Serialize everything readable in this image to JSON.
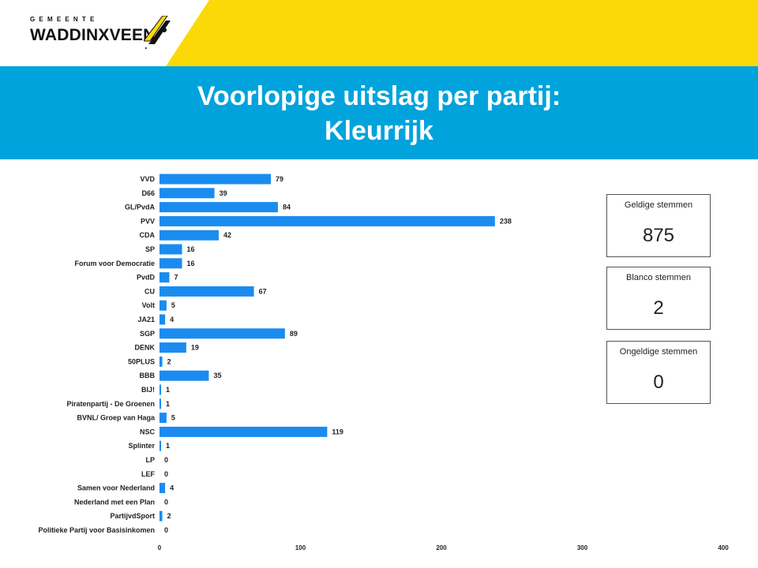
{
  "header": {
    "logo_small": "GEMEENTE",
    "logo_main": "WADDINXVEEN",
    "title_line1": "Voorlopige uitslag per partij:",
    "title_line2": "Kleurrijk"
  },
  "colors": {
    "banner": "#00a3dc",
    "accent_yellow": "#fbd907",
    "bar": "#1a8cf0"
  },
  "cards": [
    {
      "title": "Geldige stemmen",
      "value": "875"
    },
    {
      "title": "Blanco stemmen",
      "value": "2"
    },
    {
      "title": "Ongeldige stemmen",
      "value": "0"
    }
  ],
  "chart_data": {
    "type": "bar",
    "orientation": "horizontal",
    "categories": [
      "VVD",
      "D66",
      "GL/PvdA",
      "PVV",
      "CDA",
      "SP",
      "Forum voor Democratie",
      "PvdD",
      "CU",
      "Volt",
      "JA21",
      "SGP",
      "DENK",
      "50PLUS",
      "BBB",
      "BIJ!",
      "Piratenpartij - De Groenen",
      "BVNL/ Groep van Haga",
      "NSC",
      "Splinter",
      "LP",
      "LEF",
      "Samen voor Nederland",
      "Nederland met een Plan",
      "PartijvdSport",
      "Politieke Partij voor Basisinkomen"
    ],
    "values": [
      79,
      39,
      84,
      238,
      42,
      16,
      16,
      7,
      67,
      5,
      4,
      89,
      19,
      2,
      35,
      1,
      1,
      5,
      119,
      1,
      0,
      0,
      4,
      0,
      2,
      0
    ],
    "xlim": [
      0,
      400
    ],
    "xticks": [
      0,
      100,
      200,
      300,
      400
    ],
    "grid": false,
    "data_labels": true
  }
}
